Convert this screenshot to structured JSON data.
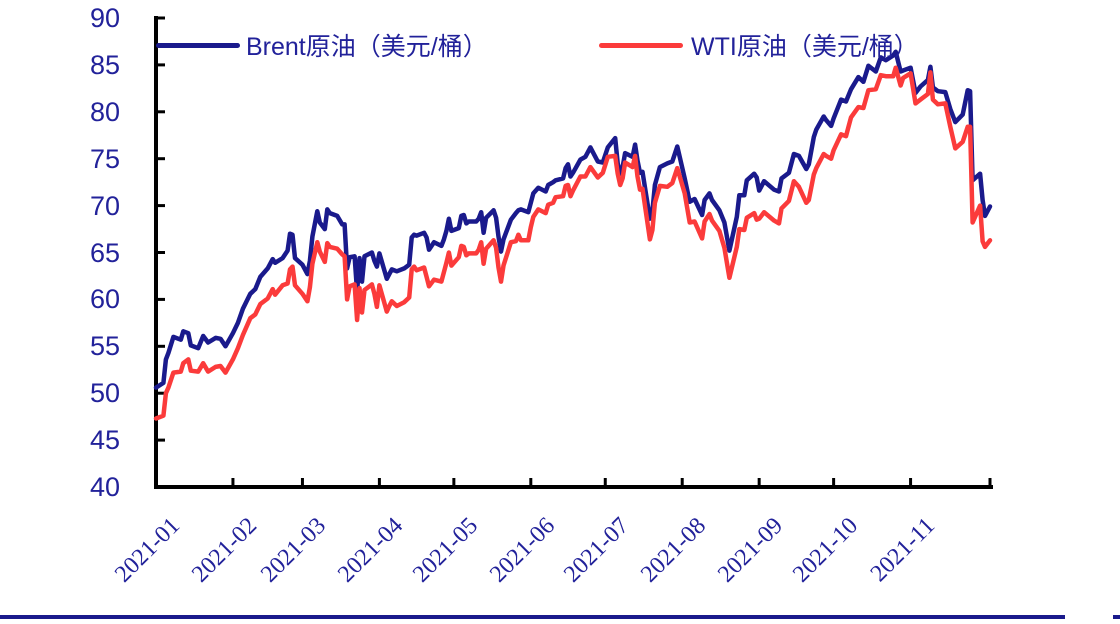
{
  "page": {
    "background": "#ffffff"
  },
  "legend": {
    "items": [
      {
        "label": "Brent原油（美元/桶）",
        "color": "#1A1A8C"
      },
      {
        "label": "WTI原油（美元/桶）",
        "color": "#FB3B3B"
      }
    ]
  },
  "axes": {
    "line_color": "#000000",
    "tick_label_color": "#22229A"
  },
  "footer": {
    "divider_color": "#1A1A8C"
  },
  "chart_data": {
    "type": "line",
    "title": "",
    "xlabel": "",
    "ylabel": "",
    "ylim": [
      40,
      90
    ],
    "y_tick_step": 5,
    "y_ticks": [
      90,
      85,
      80,
      75,
      70,
      65,
      60,
      55,
      50,
      45,
      40
    ],
    "x_tick_labels": [
      "2021-01",
      "2021-02",
      "2021-03",
      "2021-04",
      "2021-05",
      "2021-06",
      "2021-07",
      "2021-08",
      "2021-09",
      "2021-10",
      "2021-11"
    ],
    "x_unit": "day_of_year_2021",
    "grid": false,
    "legend_position": "top",
    "x": [
      1,
      4,
      5,
      6,
      8,
      11,
      12,
      14,
      15,
      18,
      20,
      22,
      25,
      27,
      29,
      32,
      34,
      36,
      39,
      41,
      43,
      46,
      48,
      49,
      52,
      54,
      55,
      56,
      57,
      60,
      62,
      63,
      64,
      66,
      67,
      69,
      70,
      71,
      74,
      76,
      77,
      78,
      79,
      81,
      82,
      83,
      84,
      85,
      88,
      89,
      90,
      91,
      94,
      95,
      96,
      98,
      101,
      103,
      104,
      105,
      106,
      109,
      110,
      111,
      113,
      116,
      117,
      118,
      119,
      120,
      123,
      124,
      125,
      126,
      127,
      130,
      131,
      132,
      133,
      134,
      137,
      138,
      139,
      140,
      141,
      144,
      146,
      147,
      148,
      151,
      152,
      153,
      155,
      158,
      159,
      161,
      162,
      165,
      166,
      167,
      168,
      169,
      172,
      174,
      176,
      179,
      181,
      183,
      186,
      187,
      188,
      189,
      190,
      193,
      194,
      195,
      196,
      197,
      200,
      201,
      202,
      204,
      207,
      209,
      211,
      214,
      216,
      218,
      221,
      222,
      224,
      225,
      228,
      230,
      232,
      235,
      236,
      238,
      239,
      242,
      243,
      244,
      246,
      250,
      252,
      253,
      256,
      258,
      260,
      263,
      264,
      266,
      267,
      270,
      271,
      273,
      274,
      277,
      279,
      281,
      284,
      286,
      288,
      291,
      293,
      295,
      298,
      299,
      301,
      302,
      305,
      307,
      309,
      312,
      313,
      314,
      316,
      319,
      321,
      323,
      326,
      328,
      329,
      330,
      333,
      334,
      335,
      337
    ],
    "series": [
      {
        "name": "Brent原油（美元/桶）",
        "color": "#1A1A8C",
        "values": [
          50.6,
          51.1,
          53.6,
          54.3,
          56.0,
          55.7,
          56.6,
          56.4,
          55.1,
          54.8,
          56.1,
          55.4,
          55.9,
          55.8,
          55.0,
          56.4,
          57.5,
          59.0,
          60.6,
          61.1,
          62.4,
          63.3,
          64.3,
          63.9,
          64.4,
          65.2,
          67.0,
          66.9,
          64.4,
          63.7,
          62.7,
          64.1,
          66.7,
          69.4,
          68.2,
          67.5,
          69.6,
          69.2,
          68.9,
          68.0,
          68.0,
          63.3,
          64.5,
          64.6,
          60.8,
          64.4,
          61.9,
          64.6,
          65.0,
          64.1,
          63.5,
          64.9,
          62.2,
          62.7,
          63.2,
          63.0,
          63.3,
          63.7,
          66.6,
          66.9,
          66.8,
          67.1,
          66.6,
          65.3,
          66.1,
          65.7,
          66.4,
          67.3,
          68.6,
          67.3,
          67.6,
          68.9,
          69.0,
          68.1,
          68.3,
          68.3,
          68.6,
          69.3,
          67.1,
          68.7,
          69.5,
          68.7,
          66.7,
          65.1,
          66.4,
          68.5,
          69.2,
          69.5,
          69.6,
          69.3,
          70.3,
          71.3,
          71.9,
          71.5,
          72.2,
          72.5,
          72.7,
          72.9,
          74.0,
          74.4,
          73.1,
          73.5,
          74.9,
          75.2,
          76.2,
          74.7,
          74.6,
          76.2,
          77.2,
          74.5,
          73.4,
          74.1,
          75.6,
          75.2,
          76.5,
          74.8,
          73.5,
          73.6,
          68.6,
          69.4,
          72.2,
          74.1,
          74.5,
          74.7,
          76.3,
          72.9,
          70.4,
          70.7,
          69.0,
          70.6,
          71.3,
          70.6,
          69.5,
          68.2,
          65.2,
          68.8,
          71.1,
          71.1,
          72.7,
          73.4,
          73.0,
          71.6,
          72.6,
          71.7,
          71.5,
          72.9,
          73.5,
          75.5,
          75.3,
          73.9,
          74.4,
          77.3,
          78.1,
          79.5,
          79.1,
          78.5,
          79.3,
          81.3,
          81.1,
          82.4,
          83.7,
          83.2,
          84.9,
          84.3,
          85.8,
          85.5,
          86.0,
          86.4,
          84.3,
          84.4,
          84.7,
          82.0,
          82.7,
          83.4,
          84.8,
          82.6,
          82.2,
          82.1,
          80.3,
          78.9,
          79.7,
          82.3,
          82.2,
          72.7,
          73.4,
          70.6,
          68.9,
          69.9
        ]
      },
      {
        "name": "WTI原油（美元/桶）",
        "color": "#FB3B3B",
        "values": [
          47.3,
          47.6,
          50.0,
          50.6,
          52.2,
          52.3,
          53.2,
          53.6,
          52.4,
          52.3,
          53.2,
          52.3,
          52.8,
          52.9,
          52.2,
          53.6,
          54.8,
          56.2,
          58.0,
          58.4,
          59.5,
          60.1,
          61.1,
          60.5,
          61.5,
          61.7,
          63.2,
          63.5,
          61.5,
          60.6,
          59.8,
          61.3,
          63.8,
          66.1,
          65.1,
          64.0,
          66.0,
          65.6,
          65.4,
          64.8,
          64.6,
          60.0,
          61.4,
          61.6,
          57.8,
          61.2,
          58.6,
          61.0,
          61.6,
          60.6,
          59.2,
          61.5,
          58.7,
          59.3,
          59.8,
          59.3,
          59.7,
          60.2,
          63.2,
          63.5,
          63.1,
          63.4,
          62.4,
          61.4,
          62.1,
          61.9,
          62.9,
          63.9,
          65.0,
          63.6,
          64.5,
          65.7,
          65.6,
          64.7,
          64.9,
          64.9,
          65.3,
          66.1,
          63.8,
          65.4,
          66.3,
          65.5,
          63.4,
          61.9,
          63.6,
          66.1,
          66.2,
          66.9,
          66.3,
          66.3,
          67.7,
          68.8,
          69.6,
          69.2,
          70.1,
          70.3,
          70.9,
          71.0,
          72.1,
          72.2,
          71.0,
          71.6,
          73.1,
          73.1,
          74.1,
          73.0,
          73.5,
          75.2,
          75.3,
          73.4,
          72.2,
          72.9,
          74.6,
          74.1,
          75.3,
          73.1,
          71.7,
          71.8,
          66.4,
          67.4,
          70.3,
          72.1,
          72.0,
          72.4,
          74.0,
          71.3,
          68.2,
          68.3,
          66.5,
          68.3,
          69.1,
          68.4,
          67.3,
          65.5,
          62.3,
          65.6,
          67.5,
          67.4,
          68.7,
          69.2,
          68.5,
          68.6,
          69.3,
          68.4,
          68.1,
          69.7,
          70.5,
          72.6,
          72.0,
          70.3,
          70.6,
          73.3,
          74.0,
          75.5,
          75.3,
          75.0,
          75.9,
          77.6,
          77.4,
          79.4,
          80.5,
          80.4,
          82.3,
          82.4,
          83.9,
          83.8,
          83.8,
          84.7,
          82.8,
          83.6,
          84.1,
          80.9,
          81.3,
          81.9,
          84.2,
          81.3,
          80.8,
          80.9,
          78.4,
          76.1,
          76.8,
          78.4,
          78.4,
          68.2,
          70.0,
          66.2,
          65.6,
          66.3
        ]
      }
    ]
  }
}
